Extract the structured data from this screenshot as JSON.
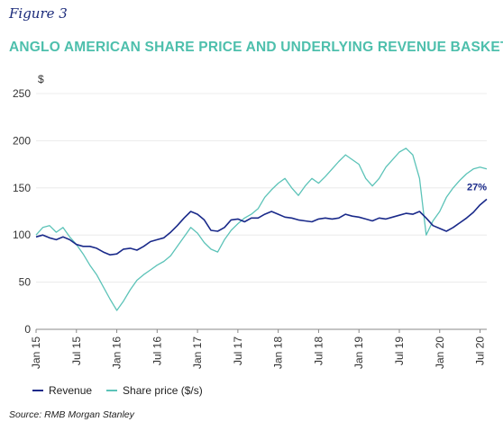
{
  "figure_label": "Figure 3",
  "title": "ANGLO AMERICAN SHARE PRICE AND UNDERLYING REVENUE BASKET",
  "source": "Source: RMB Morgan Stanley",
  "colors": {
    "revenue": "#1a2a8a",
    "share_price": "#5cc3b8",
    "grid": "#e6e6e6",
    "axis": "#888888"
  },
  "chart_data": {
    "type": "line",
    "ylabel": "$",
    "ylim": [
      0,
      250
    ],
    "yticks": [
      "0",
      "50",
      "100",
      "150",
      "200",
      "250"
    ],
    "xtick_labels": [
      "Jan 15",
      "Jul 15",
      "Jan 16",
      "Jul 16",
      "Jan 17",
      "Jul 17",
      "Jan 18",
      "Jul 18",
      "Jan 19",
      "Jul 19",
      "Jan 20",
      "Jul 20"
    ],
    "xlim": [
      0,
      67
    ],
    "annotation": "27%",
    "legend": [
      "Revenue",
      "Share price ($/s)"
    ],
    "series": [
      {
        "name": "Revenue",
        "points": [
          [
            0,
            98
          ],
          [
            1,
            100
          ],
          [
            2,
            97
          ],
          [
            3,
            95
          ],
          [
            4,
            98
          ],
          [
            5,
            95
          ],
          [
            6,
            90
          ],
          [
            7,
            88
          ],
          [
            8,
            88
          ],
          [
            9,
            86
          ],
          [
            10,
            82
          ],
          [
            11,
            79
          ],
          [
            12,
            80
          ],
          [
            13,
            85
          ],
          [
            14,
            86
          ],
          [
            15,
            84
          ],
          [
            16,
            88
          ],
          [
            17,
            93
          ],
          [
            18,
            95
          ],
          [
            19,
            97
          ],
          [
            20,
            103
          ],
          [
            21,
            110
          ],
          [
            22,
            118
          ],
          [
            23,
            125
          ],
          [
            24,
            122
          ],
          [
            25,
            116
          ],
          [
            26,
            105
          ],
          [
            27,
            104
          ],
          [
            28,
            108
          ],
          [
            29,
            116
          ],
          [
            30,
            117
          ],
          [
            31,
            114
          ],
          [
            32,
            118
          ],
          [
            33,
            118
          ],
          [
            34,
            122
          ],
          [
            35,
            125
          ],
          [
            36,
            122
          ],
          [
            37,
            119
          ],
          [
            38,
            118
          ],
          [
            39,
            116
          ],
          [
            40,
            115
          ],
          [
            41,
            114
          ],
          [
            42,
            117
          ],
          [
            43,
            118
          ],
          [
            44,
            117
          ],
          [
            45,
            118
          ],
          [
            46,
            122
          ],
          [
            47,
            120
          ],
          [
            48,
            119
          ],
          [
            49,
            117
          ],
          [
            50,
            115
          ],
          [
            51,
            118
          ],
          [
            52,
            117
          ],
          [
            53,
            119
          ],
          [
            54,
            121
          ],
          [
            55,
            123
          ],
          [
            56,
            122
          ],
          [
            57,
            125
          ],
          [
            58,
            118
          ],
          [
            59,
            110
          ],
          [
            60,
            107
          ],
          [
            61,
            104
          ],
          [
            62,
            108
          ],
          [
            63,
            113
          ],
          [
            64,
            118
          ],
          [
            65,
            124
          ],
          [
            66,
            132
          ],
          [
            67,
            138
          ]
        ]
      },
      {
        "name": "Share price ($/s)",
        "points": [
          [
            0,
            100
          ],
          [
            1,
            108
          ],
          [
            2,
            110
          ],
          [
            3,
            103
          ],
          [
            4,
            108
          ],
          [
            5,
            98
          ],
          [
            6,
            90
          ],
          [
            7,
            80
          ],
          [
            8,
            68
          ],
          [
            9,
            58
          ],
          [
            10,
            45
          ],
          [
            11,
            32
          ],
          [
            12,
            20
          ],
          [
            13,
            30
          ],
          [
            14,
            42
          ],
          [
            15,
            52
          ],
          [
            16,
            58
          ],
          [
            17,
            63
          ],
          [
            18,
            68
          ],
          [
            19,
            72
          ],
          [
            20,
            78
          ],
          [
            21,
            88
          ],
          [
            22,
            98
          ],
          [
            23,
            108
          ],
          [
            24,
            102
          ],
          [
            25,
            92
          ],
          [
            26,
            85
          ],
          [
            27,
            82
          ],
          [
            28,
            95
          ],
          [
            29,
            105
          ],
          [
            30,
            112
          ],
          [
            31,
            118
          ],
          [
            32,
            122
          ],
          [
            33,
            128
          ],
          [
            34,
            140
          ],
          [
            35,
            148
          ],
          [
            36,
            155
          ],
          [
            37,
            160
          ],
          [
            38,
            150
          ],
          [
            39,
            142
          ],
          [
            40,
            152
          ],
          [
            41,
            160
          ],
          [
            42,
            155
          ],
          [
            43,
            162
          ],
          [
            44,
            170
          ],
          [
            45,
            178
          ],
          [
            46,
            185
          ],
          [
            47,
            180
          ],
          [
            48,
            175
          ],
          [
            49,
            160
          ],
          [
            50,
            152
          ],
          [
            51,
            160
          ],
          [
            52,
            172
          ],
          [
            53,
            180
          ],
          [
            54,
            188
          ],
          [
            55,
            192
          ],
          [
            56,
            185
          ],
          [
            57,
            160
          ],
          [
            58,
            100
          ],
          [
            59,
            115
          ],
          [
            60,
            125
          ],
          [
            61,
            140
          ],
          [
            62,
            150
          ],
          [
            63,
            158
          ],
          [
            64,
            165
          ],
          [
            65,
            170
          ],
          [
            66,
            172
          ],
          [
            67,
            170
          ]
        ]
      }
    ]
  }
}
